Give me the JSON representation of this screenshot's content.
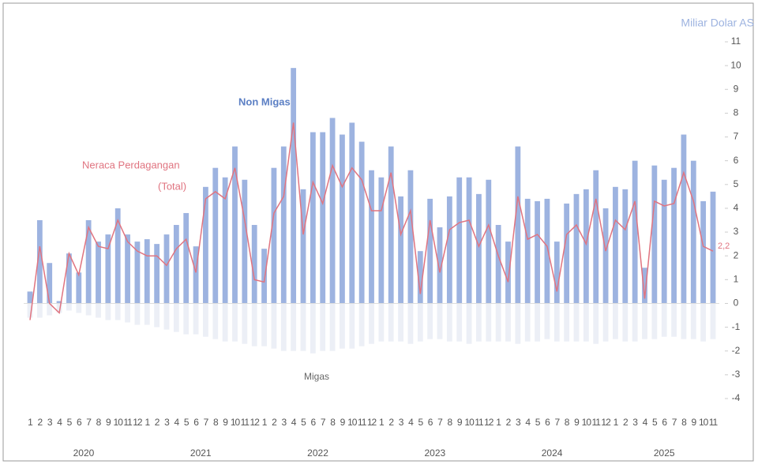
{
  "chart_data": {
    "type": "bar-line",
    "unit_label": "Miliar Dolar AS",
    "annotations": {
      "non_migas": "Non Migas",
      "total_line1": "Neraca Perdagangan",
      "total_line2": "(Total)",
      "migas": "Migas"
    },
    "categories": [
      "1",
      "2",
      "3",
      "4",
      "5",
      "6",
      "7",
      "8",
      "9",
      "10",
      "11",
      "12",
      "1",
      "2",
      "3",
      "4",
      "5",
      "6",
      "7",
      "8",
      "9",
      "10",
      "11",
      "12",
      "1",
      "2",
      "3",
      "4",
      "5",
      "6",
      "7",
      "8",
      "9",
      "10",
      "11",
      "12",
      "1",
      "2",
      "3",
      "4",
      "5",
      "6",
      "7",
      "8",
      "9",
      "10",
      "11",
      "12",
      "1",
      "2",
      "3",
      "4",
      "5",
      "6",
      "7",
      "8",
      "9",
      "10",
      "11",
      "12",
      "1",
      "2",
      "3",
      "4",
      "5",
      "6",
      "7",
      "8",
      "9",
      "10",
      "11"
    ],
    "years": [
      "2020",
      "2021",
      "2022",
      "2023",
      "2024",
      "2025"
    ],
    "series": [
      {
        "name": "Non Migas",
        "kind": "bar",
        "color": "#9db3e0",
        "values": [
          0.5,
          3.5,
          1.7,
          0.1,
          2.1,
          1.3,
          3.5,
          2.6,
          2.9,
          4.0,
          2.9,
          2.6,
          2.7,
          2.5,
          2.9,
          3.3,
          3.8,
          2.4,
          4.9,
          5.7,
          5.3,
          6.6,
          5.2,
          3.3,
          2.3,
          5.7,
          6.6,
          9.9,
          4.8,
          7.2,
          7.2,
          7.8,
          7.1,
          7.6,
          6.8,
          5.6,
          5.3,
          6.6,
          4.5,
          5.6,
          2.2,
          4.4,
          3.2,
          4.5,
          5.3,
          5.3,
          4.6,
          5.2,
          3.3,
          2.6,
          6.6,
          4.4,
          4.3,
          4.4,
          2.6,
          4.2,
          4.6,
          4.8,
          5.6,
          4.0,
          4.9,
          4.8,
          6.0,
          1.5,
          5.8,
          5.2,
          5.7,
          7.1,
          6.0,
          4.3,
          4.7
        ]
      },
      {
        "name": "Migas",
        "kind": "bar",
        "color": "#eceff6",
        "values": [
          -0.6,
          -0.6,
          -0.5,
          -0.4,
          -0.3,
          -0.4,
          -0.5,
          -0.6,
          -0.7,
          -0.7,
          -0.8,
          -0.9,
          -0.9,
          -1.0,
          -1.1,
          -1.2,
          -1.3,
          -1.3,
          -1.4,
          -1.5,
          -1.6,
          -1.6,
          -1.7,
          -1.8,
          -1.8,
          -1.9,
          -2.0,
          -2.0,
          -2.0,
          -2.1,
          -2.0,
          -2.0,
          -1.9,
          -1.9,
          -1.8,
          -1.7,
          -1.6,
          -1.6,
          -1.6,
          -1.7,
          -1.6,
          -1.5,
          -1.5,
          -1.6,
          -1.6,
          -1.7,
          -1.6,
          -1.6,
          -1.6,
          -1.6,
          -1.7,
          -1.6,
          -1.6,
          -1.5,
          -1.6,
          -1.6,
          -1.6,
          -1.6,
          -1.7,
          -1.6,
          -1.5,
          -1.6,
          -1.6,
          -1.5,
          -1.5,
          -1.4,
          -1.4,
          -1.5,
          -1.5,
          -1.6,
          -1.5
        ]
      },
      {
        "name": "Neraca Perdagangan (Total)",
        "kind": "line",
        "color": "#e07480",
        "values": [
          -0.7,
          2.4,
          0.0,
          -0.4,
          2.1,
          1.2,
          3.2,
          2.4,
          2.3,
          3.5,
          2.6,
          2.2,
          2.0,
          2.0,
          1.6,
          2.3,
          2.7,
          1.3,
          4.4,
          4.7,
          4.4,
          5.7,
          3.5,
          1.0,
          0.9,
          3.8,
          4.5,
          7.6,
          2.9,
          5.1,
          4.2,
          5.8,
          4.9,
          5.7,
          5.2,
          3.9,
          3.9,
          5.5,
          2.9,
          3.9,
          0.4,
          3.5,
          1.3,
          3.1,
          3.4,
          3.5,
          2.4,
          3.3,
          2.0,
          0.9,
          4.5,
          2.7,
          2.9,
          2.4,
          0.5,
          2.9,
          3.3,
          2.5,
          4.4,
          2.2,
          3.5,
          3.1,
          4.3,
          0.2,
          4.3,
          4.1,
          4.2,
          5.5,
          4.3,
          2.4,
          2.2
        ],
        "value_labels": [
          null,
          null,
          null,
          null,
          null,
          null,
          null,
          null,
          null,
          null,
          null,
          null,
          null,
          null,
          null,
          null,
          null,
          null,
          null,
          null,
          null,
          null,
          null,
          null,
          null,
          null,
          null,
          null,
          null,
          null,
          null,
          null,
          null,
          null,
          null,
          null,
          null,
          null,
          null,
          null,
          null,
          null,
          null,
          null,
          null,
          null,
          null,
          null,
          null,
          null,
          null,
          null,
          null,
          null,
          null,
          null,
          null,
          null,
          null,
          null,
          null,
          null,
          null,
          null,
          null,
          null,
          null,
          null,
          null,
          null,
          "2,2"
        ]
      }
    ],
    "ylim": [
      -4,
      11
    ],
    "yticks": [
      -4,
      -3,
      -2,
      -1,
      0,
      1,
      2,
      3,
      4,
      5,
      6,
      7,
      8,
      9,
      10,
      11
    ]
  }
}
